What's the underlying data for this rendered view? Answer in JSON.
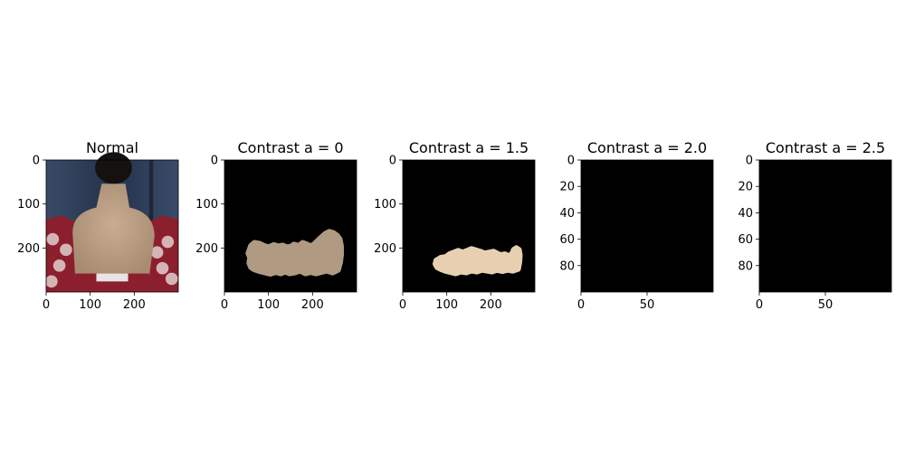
{
  "chart_data": [
    {
      "type": "image",
      "title": "Normal",
      "content": "photo",
      "xlim": [
        0,
        300
      ],
      "ylim": [
        300,
        0
      ],
      "xticks": [
        0,
        100,
        200
      ],
      "yticks": [
        0,
        100,
        200
      ],
      "xtick_labels": [
        "0",
        "100",
        "200"
      ],
      "ytick_labels": [
        "0",
        "100",
        "200"
      ]
    },
    {
      "type": "image",
      "title": "Contrast a = 0",
      "content": "mask",
      "mask_color": "#b09a82",
      "xlim": [
        0,
        300
      ],
      "ylim": [
        300,
        0
      ],
      "xticks": [
        0,
        100,
        200
      ],
      "yticks": [
        0,
        100,
        200
      ],
      "xtick_labels": [
        "0",
        "100",
        "200"
      ],
      "ytick_labels": [
        "0",
        "100",
        "200"
      ]
    },
    {
      "type": "image",
      "title": "Contrast a = 1.5",
      "content": "mask",
      "mask_color": "#e7cfb0",
      "xlim": [
        0,
        300
      ],
      "ylim": [
        300,
        0
      ],
      "xticks": [
        0,
        100,
        200
      ],
      "yticks": [
        0,
        100,
        200
      ],
      "xtick_labels": [
        "0",
        "100",
        "200"
      ],
      "ytick_labels": [
        "0",
        "100",
        "200"
      ]
    },
    {
      "type": "image",
      "title": "Contrast a = 2.0",
      "content": "black",
      "xlim": [
        0,
        100
      ],
      "ylim": [
        100,
        0
      ],
      "xticks": [
        0,
        50
      ],
      "yticks": [
        0,
        20,
        40,
        60,
        80
      ],
      "xtick_labels": [
        "0",
        "50"
      ],
      "ytick_labels": [
        "0",
        "20",
        "40",
        "60",
        "80"
      ]
    },
    {
      "type": "image",
      "title": "Contrast a = 2.5",
      "content": "black",
      "xlim": [
        0,
        100
      ],
      "ylim": [
        100,
        0
      ],
      "xticks": [
        0,
        50
      ],
      "yticks": [
        0,
        20,
        40,
        60,
        80
      ],
      "xtick_labels": [
        "0",
        "50"
      ],
      "ytick_labels": [
        "0",
        "20",
        "40",
        "60",
        "80"
      ]
    }
  ]
}
